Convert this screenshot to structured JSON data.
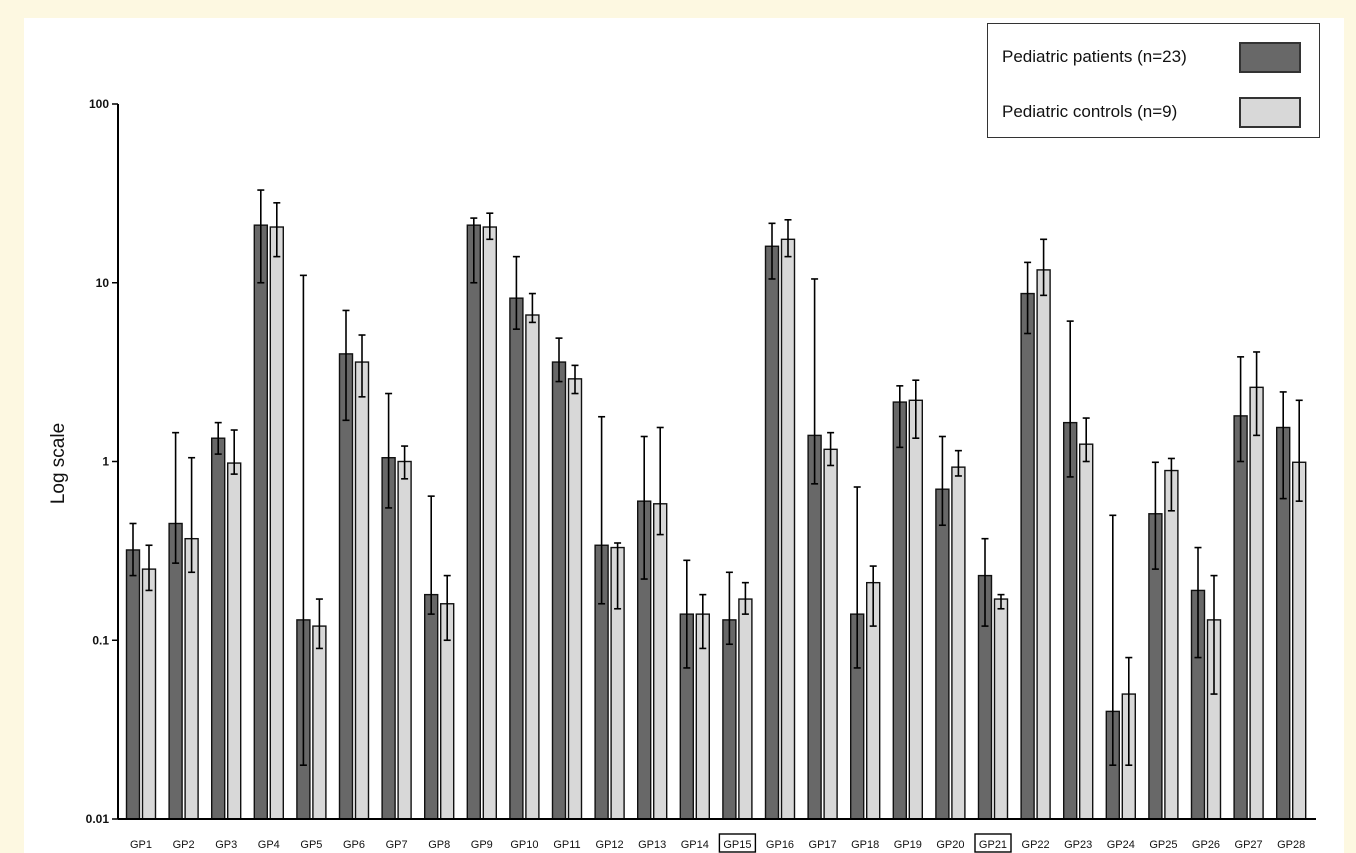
{
  "chart_data": {
    "type": "bar",
    "ylabel": "Log scale",
    "yscale": "log",
    "ylim": [
      0.01,
      100
    ],
    "yticks": [
      {
        "value": 100,
        "label": "100"
      },
      {
        "value": 10,
        "label": "10"
      },
      {
        "value": 1,
        "label": "1"
      },
      {
        "value": 0.1,
        "label": "0.1"
      },
      {
        "value": 0.01,
        "label": "0.01"
      }
    ],
    "grid": false,
    "legend_position": "top-right",
    "categories": [
      "GP1",
      "GP2",
      "GP3",
      "GP4",
      "GP5",
      "GP6",
      "GP7",
      "GP8",
      "GP9",
      "GP10",
      "GP11",
      "GP12",
      "GP13",
      "GP14",
      "GP15",
      "GP16",
      "GP17",
      "GP18",
      "GP19",
      "GP20",
      "GP21",
      "GP22",
      "GP23",
      "GP24",
      "GP25",
      "GP26",
      "GP27",
      "GP28"
    ],
    "boxed_categories": [
      "GP15",
      "GP21"
    ],
    "series": [
      {
        "name": "Pediatric patients (n=23)",
        "color": "#686868",
        "values": [
          0.32,
          0.45,
          1.35,
          21,
          0.13,
          4.0,
          1.05,
          0.18,
          21,
          8.2,
          3.6,
          0.34,
          0.6,
          0.14,
          0.13,
          16,
          1.4,
          0.14,
          2.15,
          0.7,
          0.23,
          8.7,
          1.65,
          0.04,
          0.51,
          0.19,
          1.8,
          1.55
        ],
        "error_upper": [
          0.45,
          1.45,
          1.65,
          33,
          11,
          7.0,
          2.4,
          0.64,
          23,
          14,
          4.9,
          1.78,
          1.38,
          0.28,
          0.24,
          21.5,
          10.5,
          0.72,
          2.65,
          1.38,
          0.37,
          13,
          6.1,
          0.5,
          0.99,
          0.33,
          3.85,
          2.45
        ],
        "error_lower": [
          0.23,
          0.27,
          1.1,
          10,
          0.02,
          1.7,
          0.55,
          0.14,
          10,
          5.5,
          2.8,
          0.16,
          0.22,
          0.07,
          0.095,
          10.5,
          0.75,
          0.07,
          1.2,
          0.44,
          0.12,
          5.2,
          0.82,
          0.02,
          0.25,
          0.08,
          1.0,
          0.62
        ]
      },
      {
        "name": "Pediatric controls (n=9)",
        "color": "#d8d8d8",
        "values": [
          0.25,
          0.37,
          0.98,
          20.5,
          0.12,
          3.6,
          1.0,
          0.16,
          20.5,
          6.6,
          2.9,
          0.33,
          0.58,
          0.14,
          0.17,
          17.5,
          1.17,
          0.21,
          2.2,
          0.93,
          0.17,
          11.8,
          1.25,
          0.05,
          0.89,
          0.13,
          2.6,
          0.99
        ],
        "error_upper": [
          0.34,
          1.05,
          1.5,
          28,
          0.17,
          5.1,
          1.22,
          0.23,
          24.5,
          8.7,
          3.45,
          0.35,
          1.55,
          0.18,
          0.21,
          22.5,
          1.45,
          0.26,
          2.85,
          1.15,
          0.18,
          17.5,
          1.75,
          0.08,
          1.04,
          0.23,
          4.1,
          2.2
        ],
        "error_lower": [
          0.19,
          0.24,
          0.85,
          14,
          0.09,
          2.3,
          0.8,
          0.1,
          17.5,
          6.0,
          2.4,
          0.15,
          0.39,
          0.09,
          0.14,
          14,
          0.95,
          0.12,
          1.35,
          0.83,
          0.15,
          8.5,
          1.0,
          0.02,
          0.53,
          0.05,
          1.4,
          0.6
        ]
      }
    ]
  }
}
